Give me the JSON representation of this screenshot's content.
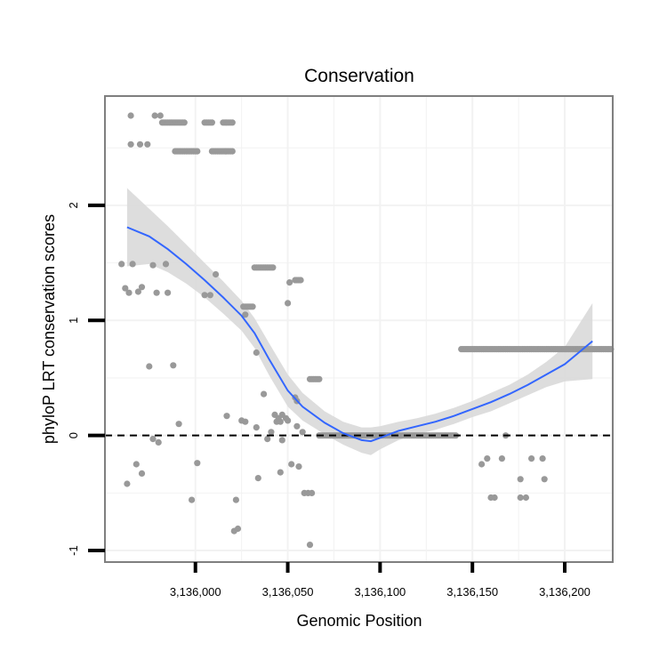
{
  "chart_data": {
    "type": "scatter",
    "title": "Conservation",
    "xlabel": "Genomic Position",
    "ylabel": "phyloP LRT conservation scores",
    "xlim": [
      3135951,
      3136226
    ],
    "ylim": [
      -1.1,
      2.95
    ],
    "x_ticks": [
      3136000,
      3136050,
      3136100,
      3136150,
      3136200
    ],
    "x_tick_labels": [
      "3,136,000",
      "3,136,050",
      "3,136,100",
      "3,136,150",
      "3,136,200"
    ],
    "y_ticks": [
      -1,
      0,
      1,
      2
    ],
    "y_tick_labels": [
      "-1",
      "0",
      "1",
      "2"
    ],
    "reference_line": {
      "y": 0,
      "style": "dashed"
    },
    "colors": {
      "points": "#999999",
      "smooth": "#3366ff",
      "ribbon": "#d9d9d9",
      "grid": "#f2f2f2",
      "border": "#7f7f7f"
    },
    "point_runs": [
      {
        "x_from": 3135982,
        "x_to": 3135994,
        "y": 2.72
      },
      {
        "x_from": 3136005,
        "x_to": 3136009,
        "y": 2.72
      },
      {
        "x_from": 3136015,
        "x_to": 3136020,
        "y": 2.72
      },
      {
        "x_from": 3135989,
        "x_to": 3136001,
        "y": 2.47
      },
      {
        "x_from": 3136009,
        "x_to": 3136020,
        "y": 2.47
      },
      {
        "x_from": 3136032,
        "x_to": 3136042,
        "y": 1.46
      },
      {
        "x_from": 3136026,
        "x_to": 3136031,
        "y": 1.12
      },
      {
        "x_from": 3136054,
        "x_to": 3136057,
        "y": 1.35
      },
      {
        "x_from": 3136062,
        "x_to": 3136067,
        "y": 0.49
      },
      {
        "x_from": 3136067,
        "x_to": 3136141,
        "y": 0.0
      },
      {
        "x_from": 3136144,
        "x_to": 3136225,
        "y": 0.75
      }
    ],
    "points": [
      {
        "x": 3135965,
        "y": 2.78
      },
      {
        "x": 3135978,
        "y": 2.78
      },
      {
        "x": 3135981,
        "y": 2.78
      },
      {
        "x": 3135965,
        "y": 2.53
      },
      {
        "x": 3135970,
        "y": 2.53
      },
      {
        "x": 3135974,
        "y": 2.53
      },
      {
        "x": 3135960,
        "y": 1.49
      },
      {
        "x": 3135966,
        "y": 1.49
      },
      {
        "x": 3135977,
        "y": 1.48
      },
      {
        "x": 3135984,
        "y": 1.49
      },
      {
        "x": 3135962,
        "y": 1.28
      },
      {
        "x": 3135964,
        "y": 1.24
      },
      {
        "x": 3135969,
        "y": 1.25
      },
      {
        "x": 3135971,
        "y": 1.29
      },
      {
        "x": 3135979,
        "y": 1.24
      },
      {
        "x": 3135985,
        "y": 1.24
      },
      {
        "x": 3136011,
        "y": 1.4
      },
      {
        "x": 3136005,
        "y": 1.22
      },
      {
        "x": 3136008,
        "y": 1.22
      },
      {
        "x": 3136027,
        "y": 1.05
      },
      {
        "x": 3136033,
        "y": 0.72
      },
      {
        "x": 3136050,
        "y": 1.15
      },
      {
        "x": 3136051,
        "y": 1.33
      },
      {
        "x": 3135975,
        "y": 0.6
      },
      {
        "x": 3135988,
        "y": 0.61
      },
      {
        "x": 3135991,
        "y": 0.1
      },
      {
        "x": 3136037,
        "y": 0.36
      },
      {
        "x": 3136054,
        "y": 0.33
      },
      {
        "x": 3136055,
        "y": 0.3
      },
      {
        "x": 3136017,
        "y": 0.17
      },
      {
        "x": 3136025,
        "y": 0.13
      },
      {
        "x": 3136027,
        "y": 0.12
      },
      {
        "x": 3136043,
        "y": 0.18
      },
      {
        "x": 3136044,
        "y": 0.12
      },
      {
        "x": 3136045,
        "y": 0.15
      },
      {
        "x": 3136046,
        "y": 0.12
      },
      {
        "x": 3136047,
        "y": 0.18
      },
      {
        "x": 3136049,
        "y": 0.15
      },
      {
        "x": 3136050,
        "y": 0.13
      },
      {
        "x": 3136033,
        "y": 0.07
      },
      {
        "x": 3136041,
        "y": 0.03
      },
      {
        "x": 3135977,
        "y": -0.03
      },
      {
        "x": 3135980,
        "y": -0.06
      },
      {
        "x": 3136039,
        "y": -0.03
      },
      {
        "x": 3136047,
        "y": -0.04
      },
      {
        "x": 3136055,
        "y": 0.08
      },
      {
        "x": 3136058,
        "y": 0.03
      },
      {
        "x": 3135968,
        "y": -0.25
      },
      {
        "x": 3135971,
        "y": -0.33
      },
      {
        "x": 3135963,
        "y": -0.42
      },
      {
        "x": 3136001,
        "y": -0.24
      },
      {
        "x": 3136034,
        "y": -0.37
      },
      {
        "x": 3136046,
        "y": -0.32
      },
      {
        "x": 3136052,
        "y": -0.25
      },
      {
        "x": 3136056,
        "y": -0.27
      },
      {
        "x": 3136059,
        "y": -0.5
      },
      {
        "x": 3136061,
        "y": -0.5
      },
      {
        "x": 3136063,
        "y": -0.5
      },
      {
        "x": 3135998,
        "y": -0.56
      },
      {
        "x": 3136022,
        "y": -0.56
      },
      {
        "x": 3136021,
        "y": -0.83
      },
      {
        "x": 3136023,
        "y": -0.81
      },
      {
        "x": 3136062,
        "y": -0.95
      },
      {
        "x": 3136155,
        "y": -0.25
      },
      {
        "x": 3136158,
        "y": -0.2
      },
      {
        "x": 3136166,
        "y": -0.2
      },
      {
        "x": 3136168,
        "y": 0.0
      },
      {
        "x": 3136182,
        "y": -0.2
      },
      {
        "x": 3136188,
        "y": -0.2
      },
      {
        "x": 3136176,
        "y": -0.38
      },
      {
        "x": 3136189,
        "y": -0.38
      },
      {
        "x": 3136160,
        "y": -0.54
      },
      {
        "x": 3136162,
        "y": -0.54
      },
      {
        "x": 3136176,
        "y": -0.54
      },
      {
        "x": 3136179,
        "y": -0.54
      }
    ],
    "series": [
      {
        "name": "loess smooth",
        "x": [
          3135963,
          3135975,
          3135985,
          3135995,
          3136005,
          3136015,
          3136025,
          3136032,
          3136040,
          3136050,
          3136058,
          3136070,
          3136080,
          3136090,
          3136095,
          3136100,
          3136110,
          3136120,
          3136130,
          3136140,
          3136150,
          3136160,
          3136170,
          3136180,
          3136190,
          3136200,
          3136215
        ],
        "values": [
          1.81,
          1.73,
          1.62,
          1.49,
          1.35,
          1.2,
          1.04,
          0.89,
          0.66,
          0.39,
          0.25,
          0.11,
          0.02,
          -0.04,
          -0.05,
          -0.02,
          0.04,
          0.08,
          0.12,
          0.17,
          0.23,
          0.29,
          0.36,
          0.44,
          0.53,
          0.62,
          0.82
        ],
        "upper": [
          2.15,
          1.97,
          1.82,
          1.66,
          1.5,
          1.34,
          1.17,
          1.02,
          0.8,
          0.53,
          0.37,
          0.21,
          0.12,
          0.07,
          0.07,
          0.08,
          0.12,
          0.15,
          0.19,
          0.24,
          0.3,
          0.37,
          0.44,
          0.53,
          0.64,
          0.77,
          1.15
        ],
        "lower": [
          1.47,
          1.49,
          1.42,
          1.32,
          1.2,
          1.06,
          0.91,
          0.76,
          0.52,
          0.25,
          0.13,
          0.01,
          -0.08,
          -0.15,
          -0.17,
          -0.12,
          -0.04,
          0.01,
          0.05,
          0.1,
          0.16,
          0.21,
          0.28,
          0.35,
          0.42,
          0.47,
          0.49
        ]
      }
    ]
  }
}
